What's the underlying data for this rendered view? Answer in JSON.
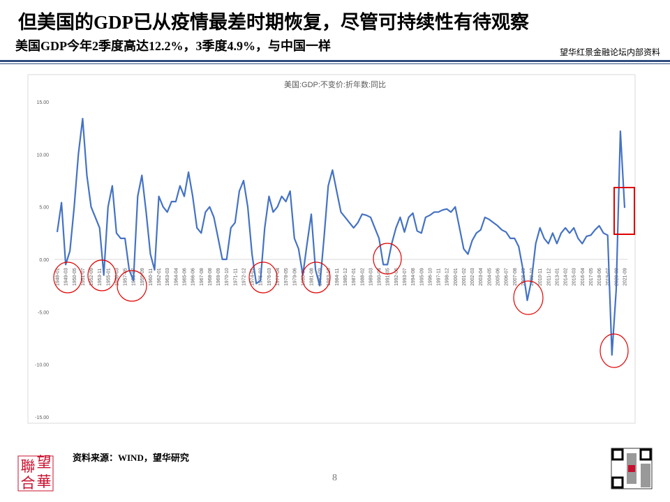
{
  "header": {
    "title": "但美国的GDP已从疫情最差时期恢复，尽管可持续性有待观察",
    "subtitle": "美国GDP今年2季度高达12.2%，3季度4.9%，与中国一样",
    "note": "望华红景金融论坛内部资料"
  },
  "footer": {
    "source": "资料来源：WIND，望华研究",
    "page": "8",
    "logo": [
      "聯",
      "望",
      "合",
      "華"
    ]
  },
  "chart_data": {
    "type": "line",
    "title": "美国:GDP:不变价:折年数:同比",
    "categories": [
      "1948-01",
      null,
      "1949-03",
      null,
      "1950-05",
      null,
      "1951-07",
      null,
      "1952-09",
      null,
      "1953-11",
      null,
      "1955-01",
      null,
      "1956-03",
      null,
      "1957-05",
      null,
      "1958-07",
      null,
      "1959-09",
      null,
      "1960-11",
      null,
      "1962-01",
      null,
      "1963-03",
      null,
      "1964-04",
      null,
      "1965-06",
      null,
      "1966-06",
      null,
      "1967-08",
      null,
      "1968-08",
      null,
      "1969-09",
      null,
      "1970-10",
      null,
      "1971-11",
      null,
      "1972-12",
      null,
      "1974-01",
      null,
      "1975-02",
      null,
      "1976-03",
      null,
      "1977-04",
      null,
      "1978-05",
      null,
      "1979-06",
      null,
      "1980-07",
      null,
      "1981-08",
      null,
      "1982-09",
      null,
      "1983-10",
      null,
      "1984-11",
      null,
      "1985-12",
      null,
      "1987-01",
      null,
      "1988-02",
      null,
      "1989-03",
      null,
      "1990-04",
      null,
      "1991-05",
      null,
      "1992-06",
      null,
      "1993-07",
      null,
      "1994-08",
      null,
      "1995-09",
      null,
      "1996-10",
      null,
      "1997-11",
      null,
      "1998-12",
      null,
      "2000-01",
      null,
      "2001-02",
      null,
      "2002-03",
      null,
      "2003-04",
      null,
      "2004-05",
      null,
      "2005-06",
      null,
      "2006-07",
      null,
      "2007-08",
      null,
      "2008-09",
      null,
      "2009-10",
      null,
      "2010-11",
      null,
      "2011-12",
      null,
      "2013-01",
      null,
      "2014-02",
      null,
      "2015-03",
      null,
      "2016-04",
      null,
      "2017-05",
      null,
      "2018-06",
      null,
      "2019-07",
      null,
      "2020-08",
      null,
      "2021-09"
    ],
    "values": [
      2.6,
      5.4,
      -0.5,
      0.8,
      5,
      10,
      13.4,
      8,
      5,
      4,
      3,
      -1.5,
      5,
      7,
      2.5,
      2,
      2,
      -1,
      -2,
      6,
      8,
      4.5,
      0.5,
      -1,
      6,
      5,
      4.5,
      5.5,
      5.5,
      7,
      6,
      8.3,
      6,
      3,
      2.5,
      4.5,
      5,
      4,
      2,
      0,
      0,
      3,
      3.5,
      6.5,
      7.5,
      5,
      0.5,
      -2.3,
      -2,
      3,
      6,
      4.5,
      5,
      6,
      5.5,
      6.5,
      2,
      1,
      -1.5,
      1.5,
      4.3,
      -1,
      -2.5,
      2,
      7,
      8.5,
      6.5,
      4.5,
      4,
      3.5,
      3,
      3.5,
      4.3,
      4.2,
      4,
      3,
      2,
      -0.5,
      -0.5,
      1.5,
      3,
      4,
      2.6,
      4,
      4.4,
      2.7,
      2.5,
      4,
      4.2,
      4.5,
      4.5,
      4.7,
      4.8,
      4.5,
      5,
      3,
      1,
      0.5,
      1.8,
      2.5,
      2.8,
      4,
      3.8,
      3.5,
      3.2,
      2.8,
      2.6,
      2,
      2,
      1.2,
      -1,
      -3.9,
      -2,
      1.5,
      3,
      2,
      1.5,
      2.5,
      1.5,
      2.5,
      3,
      2.5,
      3,
      2,
      1.5,
      2.2,
      2.3,
      2.8,
      3.2,
      2.5,
      2.3,
      -9.1,
      -2.9,
      12.2,
      4.9
    ],
    "color": "#4472c4",
    "ylim": [
      -15,
      15
    ],
    "yticks": [
      {
        "value": -15,
        "label": "-15.00"
      },
      {
        "value": -10,
        "label": "-10.00"
      },
      {
        "value": -5,
        "label": "-5.00"
      },
      {
        "value": 0,
        "label": "0.00"
      },
      {
        "value": 5,
        "label": "5.00"
      },
      {
        "value": 10,
        "label": "10.00"
      },
      {
        "value": 15,
        "label": "15.00"
      }
    ],
    "grid": false
  }
}
